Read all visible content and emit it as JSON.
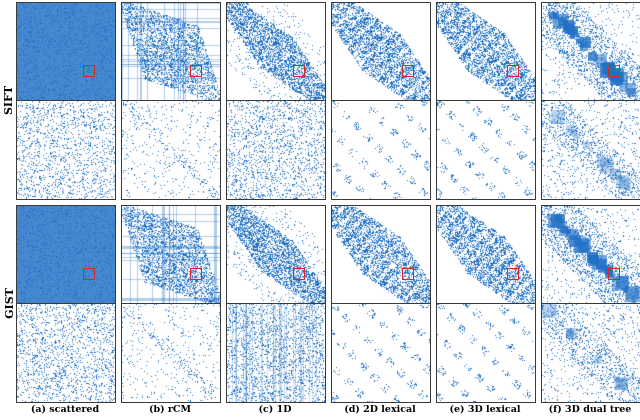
{
  "row_labels": [
    "SIFT",
    "GIST"
  ],
  "captions": [
    "(a) scattered",
    "(b) rCM",
    "(c) 1D",
    "(d) 2D lexical",
    "(e) 3D lexical",
    "(f) 3D dual tree"
  ],
  "colors": {
    "dot": "#1f6fc5",
    "highlight_box": "#d8262e",
    "frame": "#3a3a3a"
  }
}
